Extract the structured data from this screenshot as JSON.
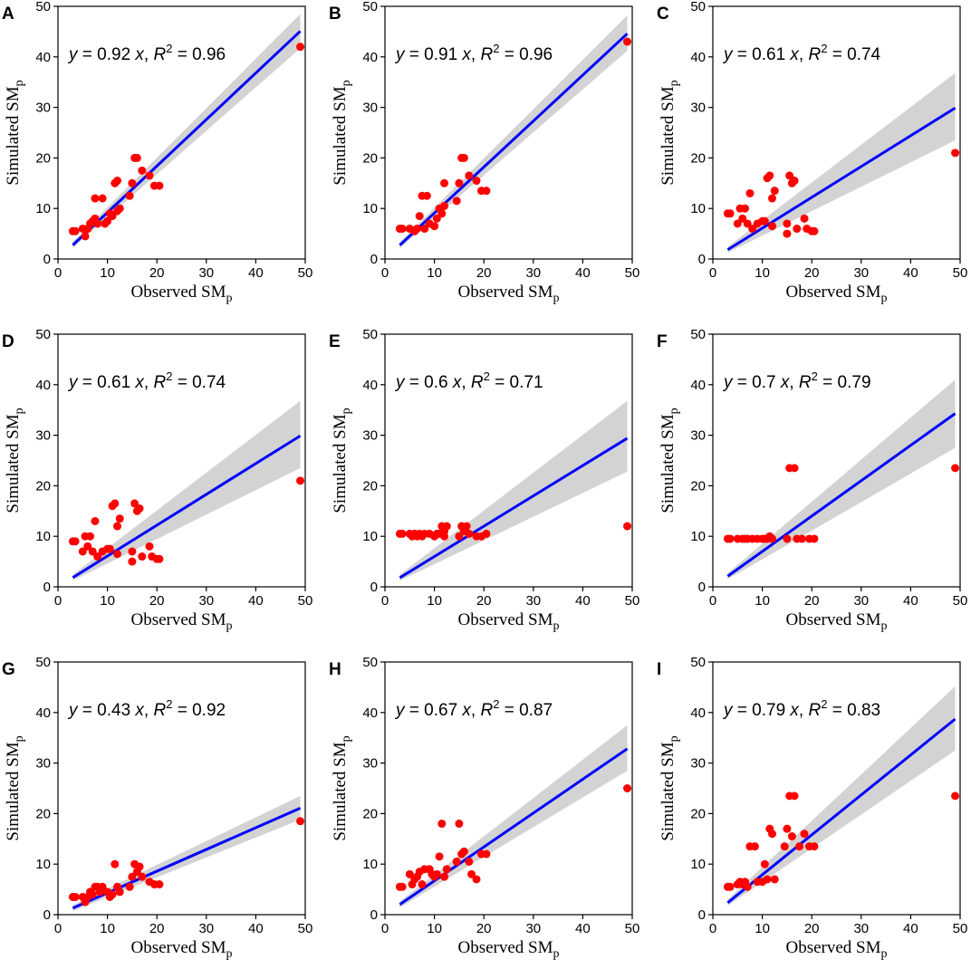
{
  "colors": {
    "points": "#ff0000",
    "fit_line": "#0000ff",
    "ci_band": "#d3d3d3",
    "axes": "#000000"
  },
  "chart_data": [
    {
      "panel": "A",
      "type": "scatter",
      "xlabel": "Observed SM",
      "xlabel_sub": "p",
      "ylabel": "Simulated SM",
      "ylabel_sub": "p",
      "xlim": [
        0,
        50
      ],
      "ylim": [
        0,
        50
      ],
      "xticks": [
        0,
        10,
        20,
        30,
        40,
        50
      ],
      "yticks": [
        0,
        10,
        20,
        30,
        40,
        50
      ],
      "equation": {
        "y": "y",
        "eq_coef": " = 0.92 ",
        "x": "x",
        "sep": ", ",
        "r": "R",
        "sup": "2",
        "r2": " = 0.96"
      },
      "fit": {
        "slope": 0.92,
        "x_range": [
          3,
          49
        ],
        "ci_lower_end": 41.7,
        "ci_upper_end": 48.5
      },
      "points": [
        [
          3,
          5.5
        ],
        [
          3.5,
          5.5
        ],
        [
          5,
          6
        ],
        [
          5.5,
          4.5
        ],
        [
          6,
          6
        ],
        [
          6.5,
          7
        ],
        [
          7,
          7.5
        ],
        [
          7.5,
          8
        ],
        [
          7.5,
          12
        ],
        [
          8,
          7
        ],
        [
          9,
          12
        ],
        [
          9.5,
          7
        ],
        [
          10,
          7.5
        ],
        [
          10.5,
          9
        ],
        [
          11,
          8.5
        ],
        [
          11.5,
          15
        ],
        [
          12,
          15.5
        ],
        [
          12,
          9.5
        ],
        [
          12.5,
          10
        ],
        [
          14.5,
          12.5
        ],
        [
          15,
          15
        ],
        [
          15.5,
          20
        ],
        [
          16,
          20
        ],
        [
          17,
          17.5
        ],
        [
          18.5,
          16.5
        ],
        [
          19.5,
          14.5
        ],
        [
          20.5,
          14.5
        ],
        [
          49,
          42
        ]
      ]
    },
    {
      "panel": "B",
      "type": "scatter",
      "xlabel": "Observed SM",
      "xlabel_sub": "p",
      "ylabel": "Simulated SM",
      "ylabel_sub": "p",
      "xlim": [
        0,
        50
      ],
      "ylim": [
        0,
        50
      ],
      "xticks": [
        0,
        10,
        20,
        30,
        40,
        50
      ],
      "yticks": [
        0,
        10,
        20,
        30,
        40,
        50
      ],
      "equation": {
        "y": "y",
        "eq_coef": " = 0.91 ",
        "x": "x",
        "sep": ", ",
        "r": "R",
        "sup": "2",
        "r2": " = 0.96"
      },
      "fit": {
        "slope": 0.91,
        "x_range": [
          3,
          49
        ],
        "ci_lower_end": 41.2,
        "ci_upper_end": 48.2
      },
      "points": [
        [
          3,
          6
        ],
        [
          3.5,
          6
        ],
        [
          5,
          6
        ],
        [
          6,
          5.5
        ],
        [
          6.5,
          6
        ],
        [
          7,
          8.5
        ],
        [
          7.5,
          12.5
        ],
        [
          8,
          6
        ],
        [
          8.5,
          12.5
        ],
        [
          9,
          7
        ],
        [
          10,
          6.5
        ],
        [
          10.5,
          8
        ],
        [
          11,
          10
        ],
        [
          11.5,
          9
        ],
        [
          12,
          15
        ],
        [
          12,
          10.5
        ],
        [
          14.5,
          11.5
        ],
        [
          15,
          15
        ],
        [
          15.5,
          20
        ],
        [
          16,
          20
        ],
        [
          17,
          16.5
        ],
        [
          18.5,
          15.5
        ],
        [
          19.5,
          13.5
        ],
        [
          20.5,
          13.5
        ],
        [
          49,
          43
        ]
      ]
    },
    {
      "panel": "C",
      "type": "scatter",
      "xlabel": "Observed SM",
      "xlabel_sub": "p",
      "ylabel": "Simulated SM",
      "ylabel_sub": "p",
      "xlim": [
        0,
        50
      ],
      "ylim": [
        0,
        50
      ],
      "xticks": [
        0,
        10,
        20,
        30,
        40,
        50
      ],
      "yticks": [
        0,
        10,
        20,
        30,
        40,
        50
      ],
      "equation": {
        "y": "y",
        "eq_coef": " = 0.61 ",
        "x": "x",
        "sep": ", ",
        "r": "R",
        "sup": "2",
        "r2": " = 0.74"
      },
      "fit": {
        "slope": 0.61,
        "x_range": [
          3,
          49
        ],
        "ci_lower_end": 23.5,
        "ci_upper_end": 36.8
      },
      "points": [
        [
          3,
          9
        ],
        [
          3.5,
          9
        ],
        [
          5,
          7
        ],
        [
          5.5,
          10
        ],
        [
          6,
          8
        ],
        [
          6.5,
          10
        ],
        [
          7,
          7
        ],
        [
          7.5,
          13
        ],
        [
          8,
          6
        ],
        [
          9,
          7
        ],
        [
          10,
          7.5
        ],
        [
          10.5,
          7.5
        ],
        [
          11,
          16
        ],
        [
          11.5,
          16.5
        ],
        [
          12,
          12
        ],
        [
          12,
          6.5
        ],
        [
          12.5,
          13.5
        ],
        [
          15,
          7
        ],
        [
          15.5,
          16.5
        ],
        [
          16,
          15
        ],
        [
          16.5,
          15.5
        ],
        [
          15,
          5
        ],
        [
          17,
          6
        ],
        [
          18.5,
          8
        ],
        [
          19,
          6
        ],
        [
          20,
          5.5
        ],
        [
          20.5,
          5.5
        ],
        [
          49,
          21
        ]
      ]
    },
    {
      "panel": "D",
      "type": "scatter",
      "xlabel": "Observed SM",
      "xlabel_sub": "p",
      "ylabel": "Simulated SM",
      "ylabel_sub": "p",
      "xlim": [
        0,
        50
      ],
      "ylim": [
        0,
        50
      ],
      "xticks": [
        0,
        10,
        20,
        30,
        40,
        50
      ],
      "yticks": [
        0,
        10,
        20,
        30,
        40,
        50
      ],
      "equation": {
        "y": "y",
        "eq_coef": " = 0.61 ",
        "x": "x",
        "sep": ", ",
        "r": "R",
        "sup": "2",
        "r2": " = 0.74"
      },
      "fit": {
        "slope": 0.61,
        "x_range": [
          3,
          49
        ],
        "ci_lower_end": 23.5,
        "ci_upper_end": 36.8
      },
      "points": [
        [
          3,
          9
        ],
        [
          3.5,
          9
        ],
        [
          5,
          7
        ],
        [
          5.5,
          10
        ],
        [
          6,
          8
        ],
        [
          6.5,
          10
        ],
        [
          7,
          7
        ],
        [
          7.5,
          13
        ],
        [
          8,
          6
        ],
        [
          9,
          7
        ],
        [
          10,
          7.5
        ],
        [
          10.5,
          7.5
        ],
        [
          11,
          16
        ],
        [
          11.5,
          16.5
        ],
        [
          12,
          12
        ],
        [
          12,
          6.5
        ],
        [
          12.5,
          13.5
        ],
        [
          15,
          7
        ],
        [
          15.5,
          16.5
        ],
        [
          16,
          15
        ],
        [
          16.5,
          15.5
        ],
        [
          15,
          5
        ],
        [
          17,
          6
        ],
        [
          18.5,
          8
        ],
        [
          19,
          6
        ],
        [
          20,
          5.5
        ],
        [
          20.5,
          5.5
        ],
        [
          49,
          21
        ]
      ]
    },
    {
      "panel": "E",
      "type": "scatter",
      "xlabel": "Observed SM",
      "xlabel_sub": "p",
      "ylabel": "Simulated SM",
      "ylabel_sub": "p",
      "xlim": [
        0,
        50
      ],
      "ylim": [
        0,
        50
      ],
      "xticks": [
        0,
        10,
        20,
        30,
        40,
        50
      ],
      "yticks": [
        0,
        10,
        20,
        30,
        40,
        50
      ],
      "equation": {
        "y": "y",
        "eq_coef": " = 0.6 ",
        "x": "x",
        "sep": ", ",
        "r": "R",
        "sup": "2",
        "r2": " = 0.71"
      },
      "fit": {
        "slope": 0.6,
        "x_range": [
          3,
          49
        ],
        "ci_lower_end": 22.8,
        "ci_upper_end": 36.8
      },
      "points": [
        [
          3,
          10.5
        ],
        [
          3.5,
          10.5
        ],
        [
          5,
          10.5
        ],
        [
          5.5,
          10
        ],
        [
          6,
          10.5
        ],
        [
          6.5,
          10
        ],
        [
          7,
          10.5
        ],
        [
          7.5,
          10
        ],
        [
          8,
          10.5
        ],
        [
          9,
          10.5
        ],
        [
          10,
          10
        ],
        [
          10.5,
          10.5
        ],
        [
          11,
          10.5
        ],
        [
          11.5,
          12
        ],
        [
          12,
          11
        ],
        [
          12.5,
          12
        ],
        [
          12,
          10
        ],
        [
          15,
          10
        ],
        [
          15.5,
          12
        ],
        [
          16,
          11
        ],
        [
          16.5,
          12
        ],
        [
          17,
          10.5
        ],
        [
          18.5,
          10
        ],
        [
          19.5,
          10
        ],
        [
          20.5,
          10.5
        ],
        [
          49,
          12
        ]
      ]
    },
    {
      "panel": "F",
      "type": "scatter",
      "xlabel": "Observed SM",
      "xlabel_sub": "p",
      "ylabel": "Simulated SM",
      "ylabel_sub": "p",
      "xlim": [
        0,
        50
      ],
      "ylim": [
        0,
        50
      ],
      "xticks": [
        0,
        10,
        20,
        30,
        40,
        50
      ],
      "yticks": [
        0,
        10,
        20,
        30,
        40,
        50
      ],
      "equation": {
        "y": "y",
        "eq_coef": " = 0.7 ",
        "x": "x",
        "sep": ", ",
        "r": "R",
        "sup": "2",
        "r2": " = 0.79"
      },
      "fit": {
        "slope": 0.7,
        "x_range": [
          3,
          49
        ],
        "ci_lower_end": 27.5,
        "ci_upper_end": 41.0
      },
      "points": [
        [
          3,
          9.5
        ],
        [
          3.5,
          9.5
        ],
        [
          5,
          9.5
        ],
        [
          6,
          9.5
        ],
        [
          6.5,
          9.5
        ],
        [
          7,
          9.5
        ],
        [
          8,
          9.5
        ],
        [
          9,
          9.5
        ],
        [
          10,
          9.5
        ],
        [
          10.5,
          9.5
        ],
        [
          11,
          9.5
        ],
        [
          11.5,
          10
        ],
        [
          12,
          9.5
        ],
        [
          15,
          9.5
        ],
        [
          15.5,
          23.5
        ],
        [
          16.5,
          23.5
        ],
        [
          17,
          9.5
        ],
        [
          18,
          9.5
        ],
        [
          19.5,
          9.5
        ],
        [
          20.5,
          9.5
        ],
        [
          49,
          23.5
        ]
      ]
    },
    {
      "panel": "G",
      "type": "scatter",
      "xlabel": "Observed SM",
      "xlabel_sub": "p",
      "ylabel": "Simulated SM",
      "ylabel_sub": "p",
      "xlim": [
        0,
        50
      ],
      "ylim": [
        0,
        50
      ],
      "xticks": [
        0,
        10,
        20,
        30,
        40,
        50
      ],
      "yticks": [
        0,
        10,
        20,
        30,
        40,
        50
      ],
      "equation": {
        "y": "y",
        "eq_coef": " = 0.43 ",
        "x": "x",
        "sep": ", ",
        "r": "R",
        "sup": "2",
        "r2": " = 0.92"
      },
      "fit": {
        "slope": 0.43,
        "x_range": [
          3,
          49
        ],
        "ci_lower_end": 18.8,
        "ci_upper_end": 23.5
      },
      "points": [
        [
          3,
          3.5
        ],
        [
          3.5,
          3.5
        ],
        [
          5,
          3.5
        ],
        [
          5.5,
          2.5
        ],
        [
          6,
          3.5
        ],
        [
          6.5,
          4.5
        ],
        [
          7,
          4
        ],
        [
          7.5,
          5.5
        ],
        [
          8,
          5.5
        ],
        [
          8.5,
          4.5
        ],
        [
          9,
          5.5
        ],
        [
          10,
          4.5
        ],
        [
          10.5,
          3.5
        ],
        [
          11,
          4
        ],
        [
          11.5,
          10
        ],
        [
          12,
          5.5
        ],
        [
          12.5,
          4.5
        ],
        [
          14.5,
          5.5
        ],
        [
          15,
          7.5
        ],
        [
          15.5,
          10
        ],
        [
          16,
          8.5
        ],
        [
          16.5,
          9.5
        ],
        [
          17,
          7.5
        ],
        [
          18.5,
          6.5
        ],
        [
          19.5,
          6
        ],
        [
          20.5,
          6
        ],
        [
          49,
          18.5
        ]
      ]
    },
    {
      "panel": "H",
      "type": "scatter",
      "xlabel": "Observed SM",
      "xlabel_sub": "p",
      "ylabel": "Simulated SM",
      "ylabel_sub": "p",
      "xlim": [
        0,
        50
      ],
      "ylim": [
        0,
        50
      ],
      "xticks": [
        0,
        10,
        20,
        30,
        40,
        50
      ],
      "yticks": [
        0,
        10,
        20,
        30,
        40,
        50
      ],
      "equation": {
        "y": "y",
        "eq_coef": " = 0.67 ",
        "x": "x",
        "sep": ", ",
        "r": "R",
        "sup": "2",
        "r2": " = 0.87"
      },
      "fit": {
        "slope": 0.67,
        "x_range": [
          3,
          49
        ],
        "ci_lower_end": 28.5,
        "ci_upper_end": 37.5
      },
      "points": [
        [
          3,
          5.5
        ],
        [
          3.5,
          5.5
        ],
        [
          5,
          8
        ],
        [
          5.5,
          6
        ],
        [
          6,
          7
        ],
        [
          6.5,
          7.5
        ],
        [
          7,
          8.5
        ],
        [
          7.5,
          6
        ],
        [
          8,
          9
        ],
        [
          9,
          9
        ],
        [
          9.5,
          8
        ],
        [
          10,
          7.5
        ],
        [
          10.5,
          8
        ],
        [
          11,
          11.5
        ],
        [
          11.5,
          18
        ],
        [
          12,
          7.5
        ],
        [
          12.5,
          9
        ],
        [
          14.5,
          10.5
        ],
        [
          15,
          18
        ],
        [
          15.5,
          12
        ],
        [
          16,
          12.5
        ],
        [
          17,
          10.5
        ],
        [
          17.5,
          8
        ],
        [
          18.5,
          7
        ],
        [
          19.5,
          12
        ],
        [
          20.5,
          12
        ],
        [
          49,
          25
        ]
      ]
    },
    {
      "panel": "I",
      "type": "scatter",
      "xlabel": "Observed SM",
      "xlabel_sub": "p",
      "ylabel": "Simulated SM",
      "ylabel_sub": "p",
      "xlim": [
        0,
        50
      ],
      "ylim": [
        0,
        50
      ],
      "xticks": [
        0,
        10,
        20,
        30,
        40,
        50
      ],
      "yticks": [
        0,
        10,
        20,
        30,
        40,
        50
      ],
      "equation": {
        "y": "y",
        "eq_coef": " = 0.79 ",
        "x": "x",
        "sep": ", ",
        "r": "R",
        "sup": "2",
        "r2": " = 0.83"
      },
      "fit": {
        "slope": 0.79,
        "x_range": [
          3,
          49
        ],
        "ci_lower_end": 32.5,
        "ci_upper_end": 45.2
      },
      "points": [
        [
          3,
          5.5
        ],
        [
          3.5,
          5.5
        ],
        [
          5,
          6
        ],
        [
          5.5,
          6.5
        ],
        [
          6,
          6
        ],
        [
          6.5,
          6.5
        ],
        [
          7,
          5.5
        ],
        [
          7.5,
          13.5
        ],
        [
          8.5,
          13.5
        ],
        [
          9,
          6.5
        ],
        [
          10,
          6.5
        ],
        [
          10.5,
          10
        ],
        [
          11,
          7
        ],
        [
          11.5,
          17
        ],
        [
          12,
          16
        ],
        [
          12.5,
          7
        ],
        [
          14.5,
          13.5
        ],
        [
          15,
          17
        ],
        [
          15.5,
          23.5
        ],
        [
          16,
          15.5
        ],
        [
          16.5,
          23.5
        ],
        [
          17.5,
          13.5
        ],
        [
          18.5,
          16
        ],
        [
          19.5,
          13.5
        ],
        [
          20.5,
          13.5
        ],
        [
          49,
          23.5
        ]
      ]
    }
  ]
}
